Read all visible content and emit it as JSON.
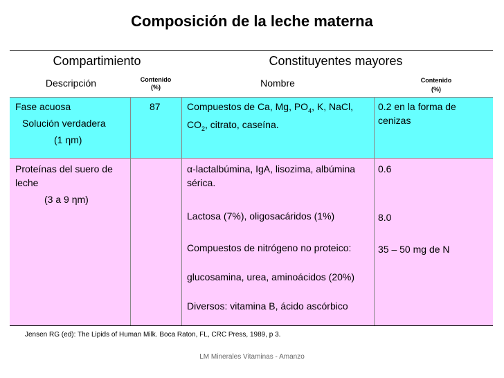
{
  "title": "Composición de la leche materna",
  "table": {
    "header1": [
      "Compartimiento",
      "Constituyentes mayores"
    ],
    "header2": [
      "Descripción",
      "Contenido",
      "(%)",
      "Nombre",
      "Contenido",
      "(%)"
    ],
    "rows": [
      {
        "description": [
          "Fase acuosa",
          "Solución verdadera",
          "(1 ηm)"
        ],
        "content": "87",
        "name": [
          "Compuestos de Ca, Mg, PO",
          "4",
          ", K, NaCl, CO",
          "2",
          ", citrato, caseína."
        ],
        "constituent_content": [
          "0.2 en la forma de cenizas"
        ]
      },
      {
        "description": [
          "Proteínas del suero de leche",
          "(3 a 9 ηm)"
        ],
        "names": [
          "α-lactalbúmina, IgA, lisozima, albúmina sérica.",
          "Lactosa (7%),  oligosacáridos (1%)",
          "Compuestos de nitrógeno no proteico:",
          "glucosamina, urea, aminoácidos (20%)",
          "Diversos: vitamina B, ácido ascórbico"
        ],
        "constituent_content": [
          "0.6",
          "8.0",
          "35 – 50 mg de N"
        ]
      }
    ]
  },
  "footnote": "Jensen RG (ed): The Lipids of Human Milk. Boca Raton, FL, CRC Press, 1989, p 3.",
  "footer": "LM Minerales Vitaminas  - Amanzo"
}
